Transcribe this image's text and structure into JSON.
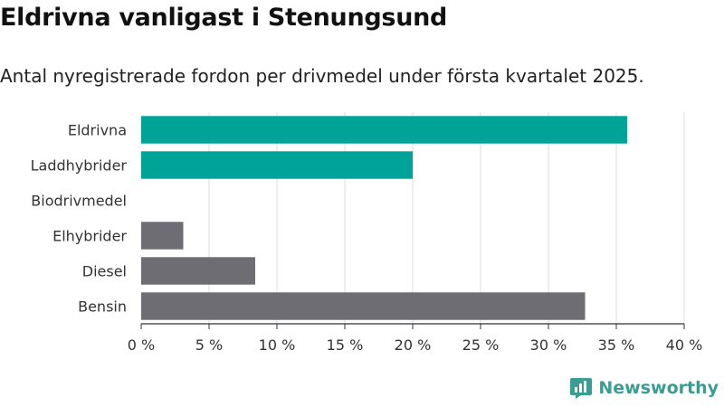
{
  "title": "Eldrivna vanligast i Stenungsund",
  "subtitle": "Antal nyregistrerade fordon per drivmedel under första kvartalet 2025.",
  "brand": {
    "name": "Newsworthy",
    "icon": "newsworthy-logo-icon"
  },
  "colors": {
    "highlight": "#00a398",
    "other": "#6e6d73",
    "grid": "#dddddd",
    "axis": "#333333"
  },
  "chart_data": {
    "type": "bar",
    "orientation": "horizontal",
    "categories": [
      "Eldrivna",
      "Laddhybrider",
      "Biodrivmedel",
      "Elhybrider",
      "Diesel",
      "Bensin"
    ],
    "values": [
      35.8,
      20.0,
      0,
      3.1,
      8.4,
      32.7
    ],
    "highlight": [
      true,
      true,
      false,
      false,
      false,
      false
    ],
    "xlim": [
      0,
      40
    ],
    "xticks": [
      0,
      5,
      10,
      15,
      20,
      25,
      30,
      35,
      40
    ],
    "xtick_labels": [
      "0 %",
      "5 %",
      "10 %",
      "15 %",
      "20 %",
      "25 %",
      "30 %",
      "35 %",
      "40 %"
    ],
    "grid": true
  }
}
